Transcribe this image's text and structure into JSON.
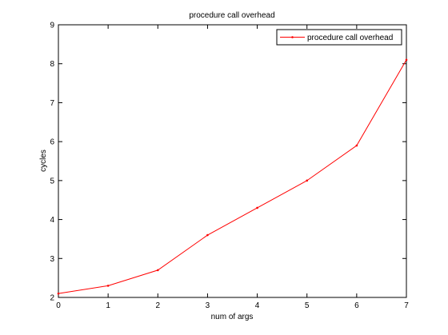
{
  "chart_data": {
    "type": "line",
    "title": "procedure call overhead",
    "xlabel": "num of args",
    "ylabel": "cycles",
    "xlim": [
      0,
      7
    ],
    "ylim": [
      2,
      9
    ],
    "x_ticks": [
      "0",
      "1",
      "2",
      "3",
      "4",
      "5",
      "6",
      "7"
    ],
    "y_ticks": [
      "2",
      "3",
      "4",
      "5",
      "6",
      "7",
      "8",
      "9"
    ],
    "grid": false,
    "legend_position": "top-right",
    "series": [
      {
        "name": "procedure call overhead",
        "color": "#ff0000",
        "marker": "dot",
        "x": [
          0,
          1,
          2,
          3,
          4,
          5,
          6,
          7
        ],
        "y": [
          2.1,
          2.3,
          2.7,
          3.6,
          4.3,
          5.0,
          5.9,
          8.1
        ]
      }
    ]
  }
}
